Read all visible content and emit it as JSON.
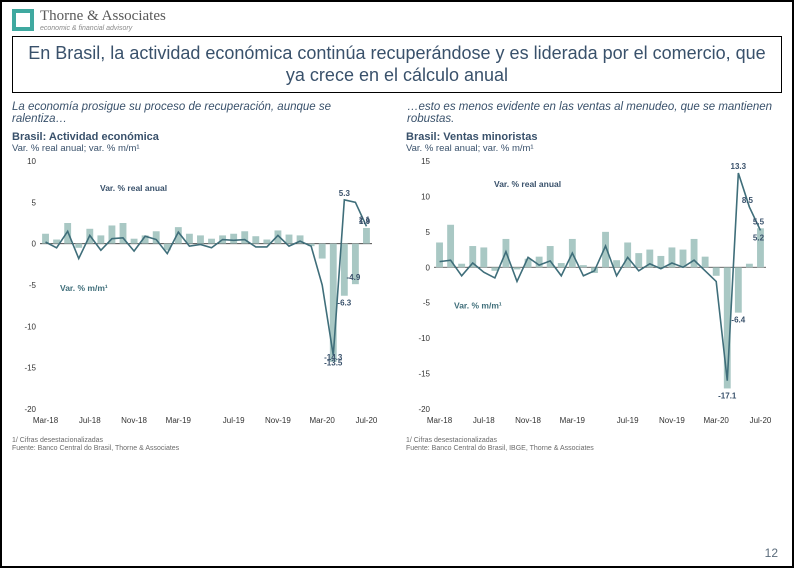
{
  "logo": {
    "name": "Thorne & Associates",
    "tagline": "economic & financial advisory"
  },
  "title": "En Brasil, la actividad económica continúa recuperándose y es liderada por el comercio, que ya crece en el cálculo anual",
  "subheads": {
    "left": "La economía prosigue su proceso de recuperación, aunque se ralentiza…",
    "right": "…esto es menos evidente en las ventas al menudeo, que se mantienen robustas."
  },
  "chart_left": {
    "type": "bar+line",
    "title": "Brasil: Actividad económica",
    "subtitle": "Var. % real anual; var. % m/m¹",
    "y_min": -20,
    "y_max": 10,
    "y_step": 5,
    "x_labels": [
      "Mar-18",
      "Jul-18",
      "Nov-18",
      "Mar-19",
      "Jul-19",
      "Nov-19",
      "Mar-20",
      "Jul-20"
    ],
    "bar_color": "#a9c8c4",
    "line_color": "#3f6e7a",
    "label_color": "#39516b",
    "text_color": "#39516b",
    "series_bar_label": "Var. % real anual",
    "series_line_label": "Var. % m/m¹",
    "bars": [
      1.2,
      0.5,
      2.5,
      -0.5,
      1.8,
      1.0,
      2.2,
      2.5,
      0.6,
      1.0,
      1.5,
      -0.8,
      2.0,
      1.2,
      1.0,
      0.6,
      1.0,
      1.2,
      1.5,
      0.9,
      0.5,
      1.6,
      1.1,
      1.0,
      -0.3,
      -1.8,
      -14.3,
      -6.3,
      -4.9,
      1.9
    ],
    "line": [
      0.2,
      -0.5,
      1.5,
      -1.8,
      1.0,
      -0.8,
      0.6,
      0.7,
      -0.9,
      0.9,
      0.5,
      -1.2,
      1.4,
      -0.3,
      -0.1,
      -0.5,
      0.5,
      0.4,
      0.5,
      -0.4,
      -0.4,
      1.0,
      -0.3,
      0.3,
      -0.3,
      -5.0,
      -13.5,
      5.3,
      5.0,
      2.1
    ],
    "value_tags": [
      {
        "i": 26,
        "v": -14.3,
        "series": "bar",
        "dy": -2
      },
      {
        "i": 26,
        "v": -13.5,
        "series": "line",
        "dy": 10
      },
      {
        "i": 27,
        "v": -6.3,
        "series": "bar",
        "dy": 10
      },
      {
        "i": 27,
        "v": 5.3,
        "series": "line",
        "dy": -4
      },
      {
        "i": 28,
        "v": -4.9,
        "series": "bar",
        "dy": -4
      },
      {
        "i": 29,
        "v": 1.9,
        "series": "bar",
        "dy": -4
      },
      {
        "i": 29,
        "v": 2.1,
        "series": "line",
        "dy": -4
      }
    ],
    "footnote": "1/ Cifras desestacionalizadas\nFuente: Banco Central do Brasil, Thorne & Associates"
  },
  "chart_right": {
    "type": "bar+line",
    "title": "Brasil: Ventas minoristas",
    "subtitle": "Var. % real anual; var. % m/m¹",
    "y_min": -20,
    "y_max": 15,
    "y_step": 5,
    "x_labels": [
      "Mar-18",
      "Jul-18",
      "Nov-18",
      "Mar-19",
      "Jul-19",
      "Nov-19",
      "Mar-20",
      "Jul-20"
    ],
    "bar_color": "#a9c8c4",
    "line_color": "#3f6e7a",
    "label_color": "#39516b",
    "text_color": "#39516b",
    "series_bar_label": "Var. % real anual",
    "series_line_label": "Var. % m/m¹",
    "bars": [
      3.5,
      6.0,
      0.5,
      3.0,
      2.8,
      -0.5,
      4.0,
      -0.3,
      1.2,
      1.5,
      3.0,
      0.6,
      4.0,
      0.3,
      -0.8,
      5.0,
      1.0,
      3.5,
      2.0,
      2.5,
      1.6,
      2.8,
      2.5,
      4.0,
      1.5,
      -1.2,
      -17.1,
      -6.4,
      0.5,
      5.5
    ],
    "line": [
      0.8,
      1.0,
      -1.2,
      0.6,
      -0.7,
      -1.5,
      2.2,
      -2.0,
      1.4,
      0.3,
      0.9,
      -1.2,
      2.0,
      -1.2,
      -0.5,
      3.0,
      -1.2,
      1.4,
      -0.5,
      0.5,
      -0.2,
      0.6,
      0.0,
      1.0,
      -0.5,
      -2.0,
      -16.0,
      13.3,
      8.5,
      5.2
    ],
    "value_tags": [
      {
        "i": 26,
        "v": -17.1,
        "series": "bar",
        "dy": 10
      },
      {
        "i": 27,
        "v": -6.4,
        "series": "bar",
        "dy": 10
      },
      {
        "i": 27,
        "v": 13.3,
        "series": "line",
        "dy": -4
      },
      {
        "i": 28,
        "v": 8.5,
        "series": "line",
        "dy": -4
      },
      {
        "i": 29,
        "v": 5.5,
        "series": "bar",
        "dy": -4
      },
      {
        "i": 29,
        "v": 5.2,
        "series": "line",
        "dy": 10
      }
    ],
    "footnote": "1/ Cifras desestacionalizadas\nFuente: Banco Central do Brasil, IBGE, Thorne & Associates"
  },
  "page_number": "12"
}
